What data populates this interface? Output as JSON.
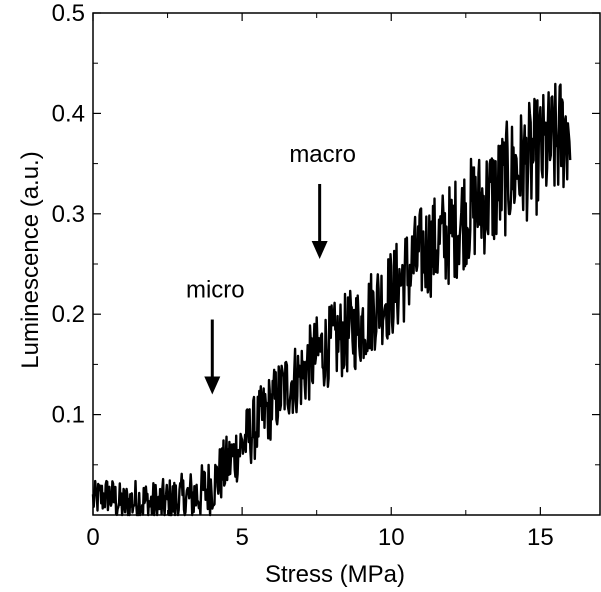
{
  "chart_data": {
    "type": "line",
    "title": "",
    "xlabel": "Stress (MPa)",
    "ylabel": "Luminescence (a.u.)",
    "xlim": [
      0,
      17
    ],
    "ylim": [
      0,
      0.5
    ],
    "x_ticks": [
      0,
      5,
      10,
      15
    ],
    "x_tick_labels": [
      "0",
      "5",
      "10",
      "15"
    ],
    "y_ticks": [
      0.1,
      0.2,
      0.3,
      0.4,
      0.5
    ],
    "y_tick_labels": [
      "0.1",
      "0.2",
      "0.3",
      "0.4",
      "0.5"
    ],
    "grid": false,
    "legend": "none",
    "line_color": "#000000",
    "series": [
      {
        "x": [
          0.0,
          0.5,
          1.0,
          1.5,
          2.0,
          2.5,
          3.0,
          3.5,
          4.0,
          4.5,
          5.0,
          5.5,
          6.0,
          6.5,
          7.0,
          7.5,
          8.0,
          8.5,
          9.0,
          9.5,
          10.0,
          10.5,
          11.0,
          11.5,
          12.0,
          12.5,
          13.0,
          13.5,
          14.0,
          14.5,
          15.0,
          15.5,
          16.0
        ],
        "y": [
          0.015,
          0.02,
          0.01,
          0.015,
          0.01,
          0.012,
          0.015,
          0.02,
          0.03,
          0.05,
          0.07,
          0.09,
          0.11,
          0.13,
          0.14,
          0.16,
          0.17,
          0.18,
          0.19,
          0.21,
          0.22,
          0.24,
          0.26,
          0.27,
          0.28,
          0.3,
          0.31,
          0.32,
          0.34,
          0.35,
          0.36,
          0.37,
          0.39
        ]
      }
    ],
    "annotations": [
      {
        "text": "micro",
        "x": 4.0,
        "y": 0.12
      },
      {
        "text": "macro",
        "x": 7.6,
        "y": 0.255
      }
    ]
  }
}
